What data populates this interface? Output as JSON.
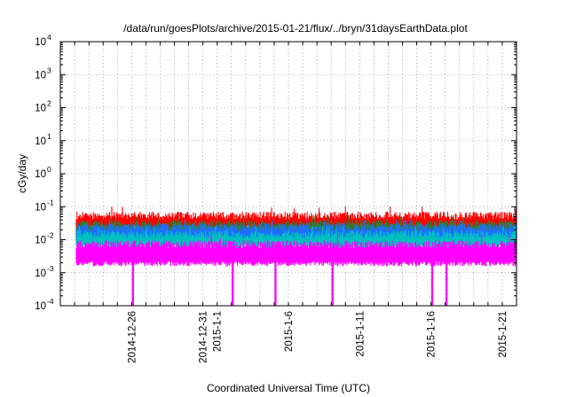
{
  "chart_data": {
    "type": "line",
    "title": "/data/run/goesPlots/archive/2015-01-21/flux/../bryn/31daysEarthData.plot",
    "xlabel": "Coordinated Universal Time (UTC)",
    "ylabel": "cGy/day",
    "y_scale": "log",
    "ylim": [
      0.0001,
      10000
    ],
    "xlim": [
      "2014-12-21",
      "2015-01-22"
    ],
    "grid": true,
    "y_ticks": [
      {
        "base": "10",
        "exp": "-4",
        "value": 0.0001
      },
      {
        "base": "10",
        "exp": "-3",
        "value": 0.001
      },
      {
        "base": "10",
        "exp": "-2",
        "value": 0.01
      },
      {
        "base": "10",
        "exp": "-1",
        "value": 0.1
      },
      {
        "base": "10",
        "exp": "0",
        "value": 1
      },
      {
        "base": "10",
        "exp": "1",
        "value": 10
      },
      {
        "base": "10",
        "exp": "2",
        "value": 100
      },
      {
        "base": "10",
        "exp": "3",
        "value": 1000
      },
      {
        "base": "10",
        "exp": "4",
        "value": 10000
      }
    ],
    "x_ticks": [
      {
        "label": "2014-12-26",
        "date": "2014-12-26"
      },
      {
        "label": "2014-12-31",
        "date": "2014-12-31"
      },
      {
        "label": "2015-1-1",
        "date": "2015-01-01"
      },
      {
        "label": "2015-1-6",
        "date": "2015-01-06"
      },
      {
        "label": "2015-1-11",
        "date": "2015-01-11"
      },
      {
        "label": "2015-1-16",
        "date": "2015-01-16"
      },
      {
        "label": "2015-1-21",
        "date": "2015-01-21"
      }
    ],
    "series": [
      {
        "color": "#ff0000",
        "typical": 0.045,
        "peak": 0.1
      },
      {
        "color": "#2e7d32",
        "typical": 0.025,
        "peak": 0.05
      },
      {
        "color": "#1e6fff",
        "typical": 0.02,
        "peak": 0.04
      },
      {
        "color": "#00c0c0",
        "typical": 0.012,
        "peak": 0.025
      },
      {
        "color": "#ff00ff",
        "typical": 0.006,
        "peak": 0.015
      }
    ],
    "dropouts": [
      "2014-12-26",
      "2015-01-02",
      "2015-01-05",
      "2015-01-09",
      "2015-01-16",
      "2015-01-17"
    ]
  }
}
